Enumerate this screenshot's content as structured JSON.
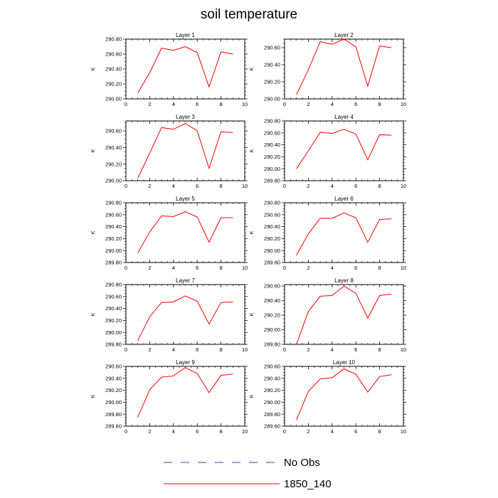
{
  "title": "soil temperature",
  "chart_data": {
    "type": "line",
    "title": "soil temperature",
    "legend": {
      "placement": "bottom-center",
      "entries": [
        {
          "label": "No Obs",
          "color": "#3b3bc9",
          "style": "dashed"
        },
        {
          "label": "1850_140",
          "color": "#ff0000",
          "style": "solid"
        }
      ]
    },
    "grid": false,
    "series_color": "#ff0000",
    "x_ticks": [
      "0",
      "2",
      "4",
      "6",
      "8",
      "10"
    ],
    "xlim": [
      0,
      10
    ],
    "x": [
      1,
      2,
      3,
      4,
      5,
      6,
      7,
      8,
      9
    ],
    "panels": [
      {
        "title": "Layer 1",
        "ylabel": "K",
        "ylim": [
          290.0,
          290.8
        ],
        "y_ticks": [
          "290.00",
          "290.20",
          "290.40",
          "290.60",
          "290.80"
        ],
        "series": [
          {
            "name": "1850_140",
            "values": [
              290.08,
              290.35,
              290.68,
              290.65,
              290.7,
              290.62,
              290.16,
              290.63,
              290.6
            ]
          }
        ]
      },
      {
        "title": "Layer 2",
        "ylabel": "K",
        "ylim": [
          290.0,
          290.7
        ],
        "y_ticks": [
          "290.00",
          "290.20",
          "290.40",
          "290.60"
        ],
        "series": [
          {
            "name": "1850_140",
            "values": [
              290.05,
              290.34,
              290.67,
              290.64,
              290.7,
              290.61,
              290.15,
              290.62,
              290.6
            ]
          }
        ]
      },
      {
        "title": "Layer 3",
        "ylabel": "K",
        "ylim": [
          290.0,
          290.72
        ],
        "y_ticks": [
          "290.00",
          "290.20",
          "290.40",
          "290.60"
        ],
        "series": [
          {
            "name": "1850_140",
            "values": [
              290.03,
              290.33,
              290.64,
              290.62,
              290.69,
              290.6,
              290.15,
              290.59,
              290.58
            ]
          }
        ]
      },
      {
        "title": "Layer 4",
        "ylabel": "K",
        "ylim": [
          289.8,
          290.8
        ],
        "y_ticks": [
          "289.80",
          "290.00",
          "290.20",
          "290.40",
          "290.60",
          "290.80"
        ],
        "series": [
          {
            "name": "1850_140",
            "values": [
              290.0,
              290.3,
              290.61,
              290.59,
              290.66,
              290.58,
              290.15,
              290.57,
              290.56
            ]
          }
        ]
      },
      {
        "title": "Layer 5",
        "ylabel": "K",
        "ylim": [
          289.8,
          290.8
        ],
        "y_ticks": [
          "289.80",
          "290.00",
          "290.20",
          "290.40",
          "290.60",
          "290.80"
        ],
        "series": [
          {
            "name": "1850_140",
            "values": [
              289.96,
              290.31,
              290.58,
              290.57,
              290.65,
              290.56,
              290.14,
              290.55,
              290.55
            ]
          }
        ]
      },
      {
        "title": "Layer 6",
        "ylabel": "K",
        "ylim": [
          289.8,
          290.8
        ],
        "y_ticks": [
          "289.80",
          "290.00",
          "290.20",
          "290.40",
          "290.60",
          "290.80"
        ],
        "series": [
          {
            "name": "1850_140",
            "values": [
              289.92,
              290.28,
              290.54,
              290.54,
              290.63,
              290.55,
              290.14,
              290.52,
              290.53
            ]
          }
        ]
      },
      {
        "title": "Layer 7",
        "ylabel": "K",
        "ylim": [
          289.8,
          290.8
        ],
        "y_ticks": [
          "289.80",
          "290.00",
          "290.20",
          "290.40",
          "290.60",
          "290.80"
        ],
        "series": [
          {
            "name": "1850_140",
            "values": [
              289.86,
              290.26,
              290.5,
              290.51,
              290.61,
              290.52,
              290.14,
              290.5,
              290.51
            ]
          }
        ]
      },
      {
        "title": "Layer 8",
        "ylabel": "K",
        "ylim": [
          289.8,
          290.62
        ],
        "y_ticks": [
          "289.80",
          "290.00",
          "290.20",
          "290.40",
          "290.60"
        ],
        "series": [
          {
            "name": "1850_140",
            "values": [
              289.8,
              290.25,
              290.46,
              290.47,
              290.6,
              290.5,
              290.16,
              290.47,
              290.49
            ]
          }
        ]
      },
      {
        "title": "Layer 9",
        "ylabel": "K",
        "ylim": [
          289.6,
          290.6
        ],
        "y_ticks": [
          "289.60",
          "289.80",
          "290.00",
          "290.20",
          "290.40",
          "290.60"
        ],
        "series": [
          {
            "name": "1850_140",
            "values": [
              289.75,
              290.21,
              290.42,
              290.44,
              290.58,
              290.48,
              290.16,
              290.45,
              290.47
            ]
          }
        ]
      },
      {
        "title": "Layer 10",
        "ylabel": "K",
        "ylim": [
          289.6,
          290.6
        ],
        "y_ticks": [
          "289.60",
          "289.80",
          "290.00",
          "290.20",
          "290.40",
          "290.60"
        ],
        "series": [
          {
            "name": "1850_140",
            "values": [
              289.7,
              290.18,
              290.39,
              290.41,
              290.56,
              290.47,
              290.17,
              290.43,
              290.46
            ]
          }
        ]
      }
    ]
  }
}
